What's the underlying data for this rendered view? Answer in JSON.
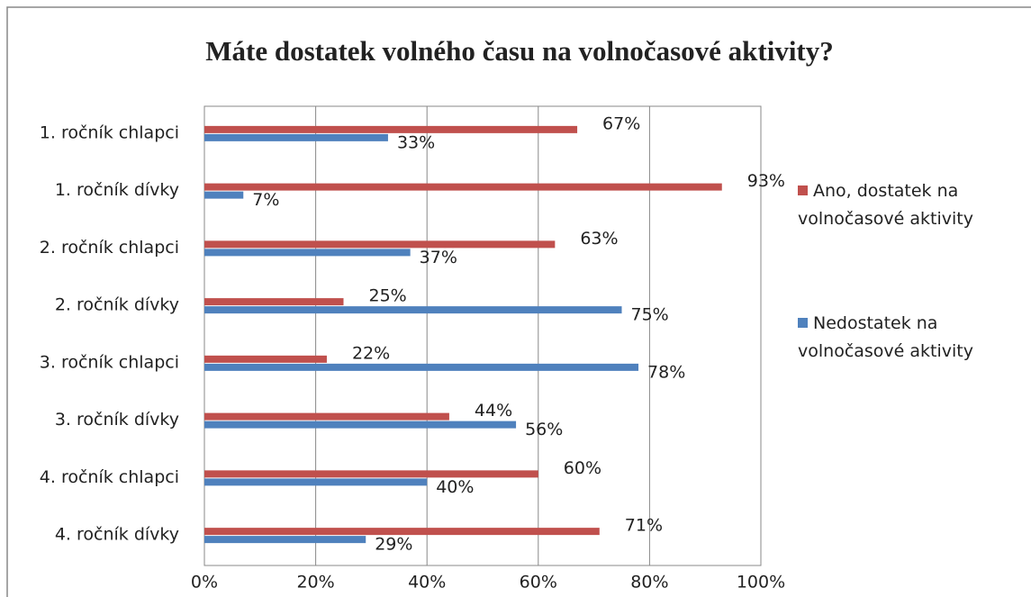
{
  "chart_data": {
    "type": "hbar",
    "title": "Máte dostatek volného času na volnočasové aktivity?",
    "categories": [
      "1. ročník chlapci",
      "1. ročník dívky",
      "2. ročník chlapci",
      "2. ročník dívky",
      "3. ročník chlapci",
      "3. ročník dívky",
      "4. ročník chlapci",
      "4. ročník dívky"
    ],
    "series": [
      {
        "name": "Ano, dostatek na volnočasové aktivity",
        "color": "#c0504d",
        "values": [
          67,
          93,
          63,
          25,
          22,
          44,
          60,
          71
        ],
        "value_labels": [
          "67%",
          "93%",
          "63%",
          "25%",
          "22%",
          "44%",
          "60%",
          "71%"
        ]
      },
      {
        "name": "Nedostatek na volnočasové aktivity",
        "color": "#4f81bd",
        "values": [
          33,
          7,
          37,
          75,
          78,
          56,
          40,
          29
        ],
        "value_labels": [
          "33%",
          "7%",
          "37%",
          "75%",
          "78%",
          "56%",
          "40%",
          "29%"
        ]
      }
    ],
    "xlim": [
      0,
      100
    ],
    "xticks": [
      {
        "value": 0,
        "label": "0%"
      },
      {
        "value": 20,
        "label": "20%"
      },
      {
        "value": 40,
        "label": "40%"
      },
      {
        "value": 60,
        "label": "60%"
      },
      {
        "value": 80,
        "label": "80%"
      },
      {
        "value": 100,
        "label": "100%"
      }
    ],
    "grid": true,
    "legend": "right"
  }
}
